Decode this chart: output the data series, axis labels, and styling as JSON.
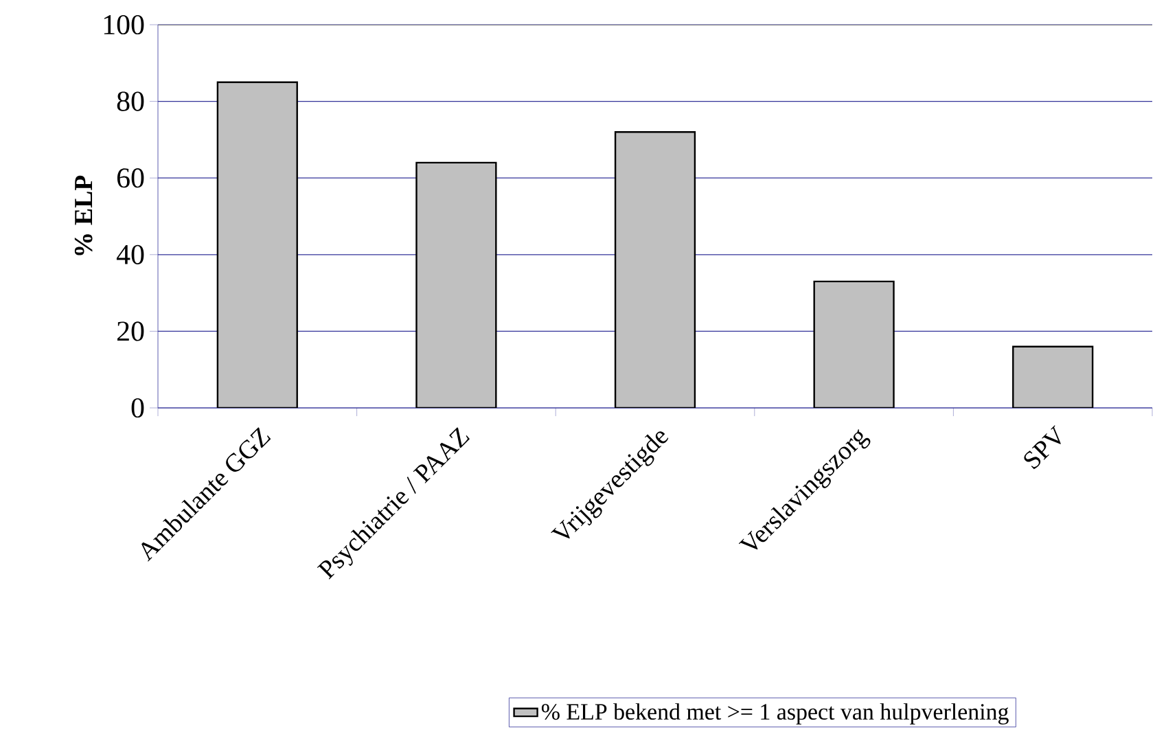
{
  "chart_data": {
    "type": "bar",
    "ylabel": "% ELP",
    "categories": [
      "Ambulante GGZ",
      "Psychiatrie / PAAZ",
      "Vrijgevestigde",
      "Verslavingszorg",
      "SPV"
    ],
    "series": [
      {
        "name": "% ELP bekend met >= 1 aspect van hulpverlening",
        "color": "#c0c0c0",
        "values": [
          85,
          64,
          72,
          33,
          16
        ]
      }
    ],
    "ylim": [
      0,
      100
    ],
    "yticks": [
      0,
      20,
      40,
      60,
      80,
      100
    ],
    "grid": "y",
    "legend": "bottom"
  }
}
